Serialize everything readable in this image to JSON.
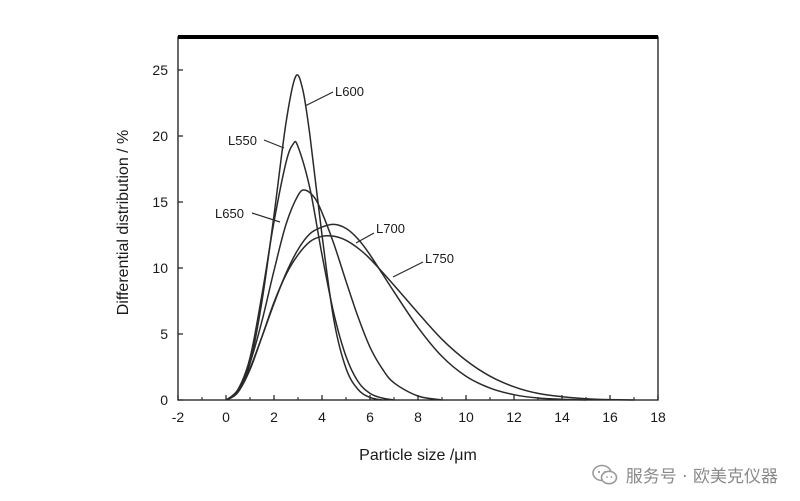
{
  "chart_data": {
    "type": "line",
    "xlabel": "Particle size /μm",
    "ylabel": "Differential distribution / %",
    "xlim": [
      -2,
      18
    ],
    "ylim": [
      0,
      27.5
    ],
    "xticks": [
      -2,
      0,
      2,
      4,
      6,
      8,
      10,
      12,
      14,
      16,
      18
    ],
    "yticks": [
      0,
      5,
      10,
      15,
      20,
      25
    ],
    "grid": false,
    "legend": "inline labels with leader lines",
    "series": [
      {
        "name": "L550",
        "points": [
          [
            0,
            0
          ],
          [
            0.5,
            0.8
          ],
          [
            1,
            3.2
          ],
          [
            1.5,
            8
          ],
          [
            2,
            13.5
          ],
          [
            2.5,
            18
          ],
          [
            2.8,
            19.4
          ],
          [
            3,
            19.2
          ],
          [
            3.5,
            16
          ],
          [
            4,
            11
          ],
          [
            4.5,
            6.5
          ],
          [
            5,
            3.3
          ],
          [
            5.5,
            1.4
          ],
          [
            6,
            0.5
          ],
          [
            6.5,
            0.15
          ],
          [
            7,
            0
          ]
        ]
      },
      {
        "name": "L600",
        "points": [
          [
            0,
            0
          ],
          [
            0.5,
            0.6
          ],
          [
            1,
            2.8
          ],
          [
            1.5,
            7.5
          ],
          [
            2,
            14
          ],
          [
            2.5,
            21
          ],
          [
            2.9,
            24.5
          ],
          [
            3.2,
            23.5
          ],
          [
            3.5,
            20
          ],
          [
            4,
            12.5
          ],
          [
            4.5,
            6
          ],
          [
            5,
            2.4
          ],
          [
            5.5,
            0.8
          ],
          [
            6,
            0.2
          ],
          [
            6.5,
            0
          ]
        ]
      },
      {
        "name": "L650",
        "points": [
          [
            0,
            0
          ],
          [
            0.5,
            0.7
          ],
          [
            1,
            2.8
          ],
          [
            1.5,
            6
          ],
          [
            2,
            9.8
          ],
          [
            2.5,
            13.3
          ],
          [
            3,
            15.5
          ],
          [
            3.3,
            15.9
          ],
          [
            3.7,
            15.3
          ],
          [
            4,
            14.2
          ],
          [
            4.5,
            11.8
          ],
          [
            5,
            9
          ],
          [
            5.5,
            6.3
          ],
          [
            6,
            4
          ],
          [
            6.5,
            2.4
          ],
          [
            7,
            1.3
          ],
          [
            8,
            0.3
          ],
          [
            9,
            0
          ]
        ]
      },
      {
        "name": "L700",
        "points": [
          [
            0,
            0
          ],
          [
            0.5,
            0.6
          ],
          [
            1,
            2.4
          ],
          [
            1.5,
            4.8
          ],
          [
            2,
            7.3
          ],
          [
            2.5,
            9.6
          ],
          [
            3,
            11.4
          ],
          [
            3.5,
            12.6
          ],
          [
            4,
            13.1
          ],
          [
            4.5,
            13.3
          ],
          [
            5,
            13
          ],
          [
            5.5,
            12.2
          ],
          [
            6,
            11
          ],
          [
            7,
            8.2
          ],
          [
            8,
            5.5
          ],
          [
            9,
            3.3
          ],
          [
            10,
            1.8
          ],
          [
            11,
            0.9
          ],
          [
            12,
            0.4
          ],
          [
            13,
            0.15
          ],
          [
            14,
            0.05
          ],
          [
            15,
            0
          ]
        ]
      },
      {
        "name": "L750",
        "points": [
          [
            0,
            0
          ],
          [
            0.5,
            0.6
          ],
          [
            1,
            2.3
          ],
          [
            1.5,
            4.8
          ],
          [
            2,
            7.4
          ],
          [
            2.5,
            9.5
          ],
          [
            3,
            11
          ],
          [
            3.5,
            12
          ],
          [
            4,
            12.4
          ],
          [
            4.5,
            12.4
          ],
          [
            5,
            12.1
          ],
          [
            5.5,
            11.5
          ],
          [
            6,
            10.7
          ],
          [
            7,
            8.7
          ],
          [
            8,
            6.6
          ],
          [
            9,
            4.6
          ],
          [
            10,
            3
          ],
          [
            11,
            1.8
          ],
          [
            12,
            1
          ],
          [
            13,
            0.5
          ],
          [
            14,
            0.25
          ],
          [
            15,
            0.1
          ],
          [
            16,
            0.03
          ],
          [
            17,
            0
          ]
        ]
      }
    ]
  },
  "watermark": {
    "text": "服务号 · 欧美克仪器",
    "icon": "wechat-icon"
  }
}
